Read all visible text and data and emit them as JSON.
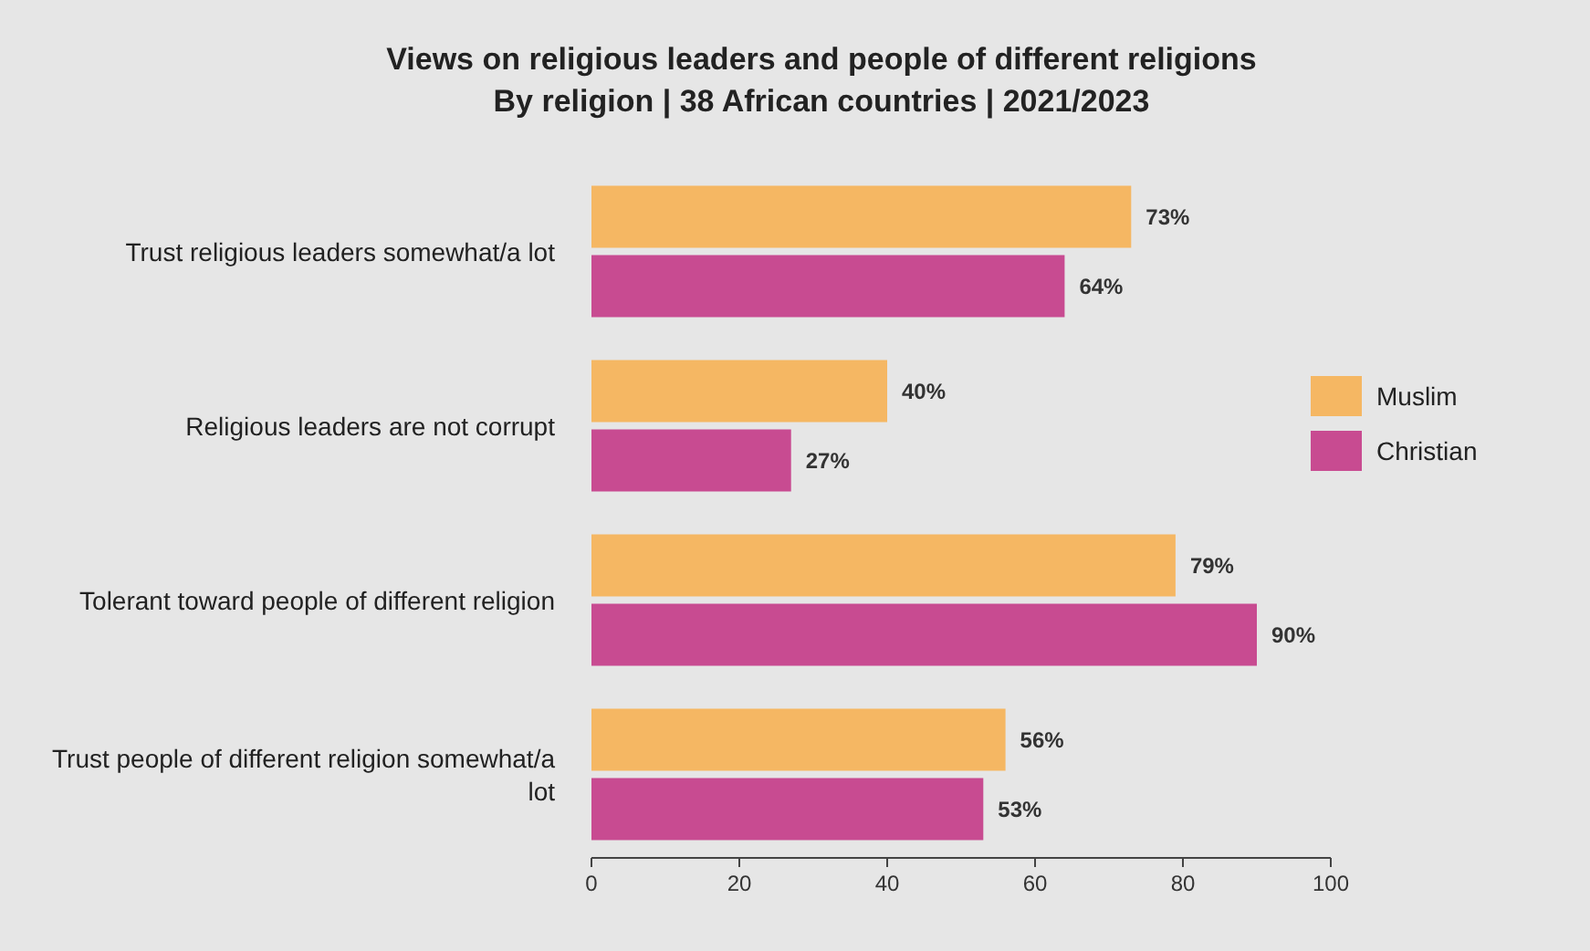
{
  "chart_data": {
    "type": "bar",
    "orientation": "horizontal",
    "title": "Views on religious leaders and people of different religions\nBy religion | 38 African countries | 2021/2023",
    "categories": [
      "Trust religious leaders somewhat/a lot",
      "Religious leaders are not corrupt",
      "Tolerant toward people of different religion",
      "Trust people of different religion somewhat/a lot"
    ],
    "series": [
      {
        "name": "Muslim",
        "color": "#f5b763",
        "values": [
          73,
          40,
          79,
          56
        ],
        "value_labels": [
          "73%",
          "40%",
          "79%",
          "56%"
        ]
      },
      {
        "name": "Christian",
        "color": "#c84b91",
        "values": [
          64,
          27,
          90,
          53
        ],
        "value_labels": [
          "64%",
          "27%",
          "90%",
          "53%"
        ]
      }
    ],
    "xlim": [
      0,
      100
    ],
    "xticks": [
      0,
      20,
      40,
      60,
      80,
      100
    ],
    "grid": false,
    "legend": "right"
  }
}
